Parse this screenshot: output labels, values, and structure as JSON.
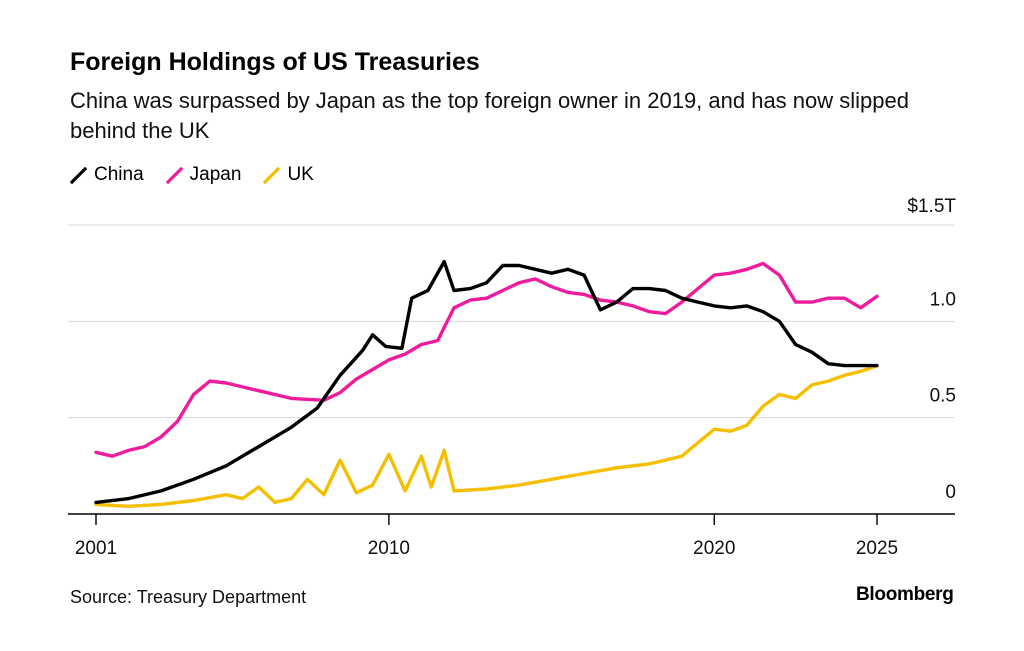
{
  "header": {
    "title": "Foreign Holdings of US Treasuries",
    "subtitle": "China was surpassed by Japan as the top foreign owner in 2019, and has now slipped behind the UK"
  },
  "footer": {
    "source": "Source: Treasury Department",
    "brand": "Bloomberg"
  },
  "chart_data": {
    "type": "line",
    "title": "Foreign Holdings of US Treasuries",
    "subtitle": "China was surpassed by Japan as the top foreign owner in 2019, and has now slipped behind the UK",
    "xlabel": "",
    "ylabel": "",
    "x_ticks": [
      {
        "value": 2001,
        "label": "2001"
      },
      {
        "value": 2010,
        "label": "2010"
      },
      {
        "value": 2020,
        "label": "2020"
      },
      {
        "value": 2025,
        "label": "2025"
      }
    ],
    "y_ticks": [
      {
        "value": 0,
        "label": "0"
      },
      {
        "value": 0.5,
        "label": "0.5"
      },
      {
        "value": 1.0,
        "label": "1.0"
      },
      {
        "value": 1.5,
        "label": "$1.5T"
      }
    ],
    "xlim": [
      2001,
      2026.5
    ],
    "ylim": [
      0,
      1.5
    ],
    "grid": true,
    "legend": "top-left",
    "colors": {
      "China": "#000000",
      "Japan": "#ee1c9c",
      "UK": "#f5bf00"
    },
    "series": [
      {
        "name": "China",
        "color": "#000000",
        "points": [
          [
            2001,
            0.06
          ],
          [
            2002,
            0.08
          ],
          [
            2003,
            0.12
          ],
          [
            2004,
            0.18
          ],
          [
            2005,
            0.25
          ],
          [
            2006,
            0.35
          ],
          [
            2007,
            0.45
          ],
          [
            2007.8,
            0.55
          ],
          [
            2008.5,
            0.72
          ],
          [
            2009.2,
            0.85
          ],
          [
            2009.5,
            0.93
          ],
          [
            2009.9,
            0.87
          ],
          [
            2010.4,
            0.86
          ],
          [
            2010.7,
            1.12
          ],
          [
            2011.2,
            1.16
          ],
          [
            2011.7,
            1.31
          ],
          [
            2012,
            1.16
          ],
          [
            2012.5,
            1.17
          ],
          [
            2013,
            1.2
          ],
          [
            2013.5,
            1.29
          ],
          [
            2014,
            1.29
          ],
          [
            2014.5,
            1.27
          ],
          [
            2015,
            1.25
          ],
          [
            2015.5,
            1.27
          ],
          [
            2016,
            1.24
          ],
          [
            2016.5,
            1.06
          ],
          [
            2017,
            1.1
          ],
          [
            2017.5,
            1.17
          ],
          [
            2018,
            1.17
          ],
          [
            2018.5,
            1.16
          ],
          [
            2019,
            1.12
          ],
          [
            2019.5,
            1.1
          ],
          [
            2020,
            1.08
          ],
          [
            2020.5,
            1.07
          ],
          [
            2021,
            1.08
          ],
          [
            2021.5,
            1.05
          ],
          [
            2022,
            1.0
          ],
          [
            2022.5,
            0.88
          ],
          [
            2023,
            0.84
          ],
          [
            2023.5,
            0.78
          ],
          [
            2024,
            0.77
          ],
          [
            2024.5,
            0.77
          ],
          [
            2025,
            0.77
          ]
        ]
      },
      {
        "name": "Japan",
        "color": "#ee1c9c",
        "points": [
          [
            2001,
            0.32
          ],
          [
            2001.5,
            0.3
          ],
          [
            2002,
            0.33
          ],
          [
            2002.5,
            0.35
          ],
          [
            2003,
            0.4
          ],
          [
            2003.5,
            0.48
          ],
          [
            2004,
            0.62
          ],
          [
            2004.5,
            0.69
          ],
          [
            2005,
            0.68
          ],
          [
            2006,
            0.64
          ],
          [
            2007,
            0.6
          ],
          [
            2008,
            0.59
          ],
          [
            2008.5,
            0.63
          ],
          [
            2009,
            0.7
          ],
          [
            2009.5,
            0.75
          ],
          [
            2010,
            0.8
          ],
          [
            2010.5,
            0.83
          ],
          [
            2011,
            0.88
          ],
          [
            2011.5,
            0.9
          ],
          [
            2012,
            1.07
          ],
          [
            2012.5,
            1.11
          ],
          [
            2013,
            1.12
          ],
          [
            2013.5,
            1.16
          ],
          [
            2014,
            1.2
          ],
          [
            2014.5,
            1.22
          ],
          [
            2015,
            1.18
          ],
          [
            2015.5,
            1.15
          ],
          [
            2016,
            1.14
          ],
          [
            2016.5,
            1.11
          ],
          [
            2017,
            1.1
          ],
          [
            2017.5,
            1.08
          ],
          [
            2018,
            1.05
          ],
          [
            2018.5,
            1.04
          ],
          [
            2019,
            1.1
          ],
          [
            2019.5,
            1.17
          ],
          [
            2020,
            1.24
          ],
          [
            2020.5,
            1.25
          ],
          [
            2021,
            1.27
          ],
          [
            2021.5,
            1.3
          ],
          [
            2022,
            1.24
          ],
          [
            2022.5,
            1.1
          ],
          [
            2023,
            1.1
          ],
          [
            2023.5,
            1.12
          ],
          [
            2024,
            1.12
          ],
          [
            2024.5,
            1.07
          ],
          [
            2025,
            1.13
          ]
        ]
      },
      {
        "name": "UK",
        "color": "#f5bf00",
        "points": [
          [
            2001,
            0.05
          ],
          [
            2002,
            0.04
          ],
          [
            2003,
            0.05
          ],
          [
            2004,
            0.07
          ],
          [
            2005,
            0.1
          ],
          [
            2005.5,
            0.08
          ],
          [
            2006,
            0.14
          ],
          [
            2006.5,
            0.06
          ],
          [
            2007,
            0.08
          ],
          [
            2007.5,
            0.18
          ],
          [
            2008,
            0.1
          ],
          [
            2008.5,
            0.28
          ],
          [
            2009,
            0.11
          ],
          [
            2009.5,
            0.15
          ],
          [
            2010,
            0.31
          ],
          [
            2010.5,
            0.12
          ],
          [
            2011,
            0.3
          ],
          [
            2011.3,
            0.14
          ],
          [
            2011.7,
            0.33
          ],
          [
            2012,
            0.12
          ],
          [
            2013,
            0.13
          ],
          [
            2014,
            0.15
          ],
          [
            2015,
            0.18
          ],
          [
            2016,
            0.21
          ],
          [
            2017,
            0.24
          ],
          [
            2018,
            0.26
          ],
          [
            2018.5,
            0.28
          ],
          [
            2019,
            0.3
          ],
          [
            2019.5,
            0.37
          ],
          [
            2020,
            0.44
          ],
          [
            2020.5,
            0.43
          ],
          [
            2021,
            0.46
          ],
          [
            2021.5,
            0.56
          ],
          [
            2022,
            0.62
          ],
          [
            2022.5,
            0.6
          ],
          [
            2023,
            0.67
          ],
          [
            2023.5,
            0.69
          ],
          [
            2024,
            0.72
          ],
          [
            2024.5,
            0.74
          ],
          [
            2025,
            0.77
          ]
        ]
      }
    ]
  }
}
